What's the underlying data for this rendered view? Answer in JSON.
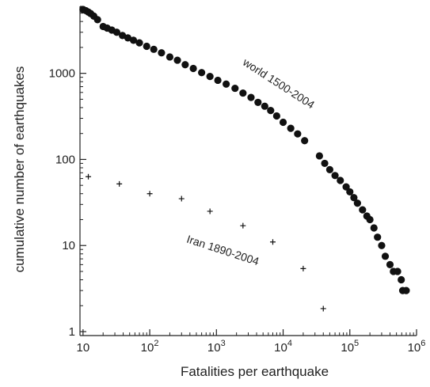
{
  "chart_data": {
    "type": "scatter",
    "xlabel": "Fatalities per earthquake",
    "ylabel": "cumulative number of earthquakes",
    "xscale": "log",
    "yscale": "log",
    "xlim": [
      9,
      1000000
    ],
    "ylim": [
      0.9,
      6000
    ],
    "grid": false,
    "x_ticks": [
      {
        "value": 10,
        "label": "10",
        "exp": ""
      },
      {
        "value": 100,
        "label": "10",
        "exp": "2"
      },
      {
        "value": 1000,
        "label": "10",
        "exp": "3"
      },
      {
        "value": 10000,
        "label": "10",
        "exp": "4"
      },
      {
        "value": 100000,
        "label": "10",
        "exp": "5"
      },
      {
        "value": 1000000,
        "label": "10",
        "exp": "6"
      }
    ],
    "y_ticks": [
      {
        "value": 1,
        "label": "1"
      },
      {
        "value": 10,
        "label": "10"
      },
      {
        "value": 100,
        "label": "100"
      },
      {
        "value": 1000,
        "label": "1000"
      }
    ],
    "series": [
      {
        "name": "world 1500-2004",
        "marker": "filled-circle",
        "color": "#111111",
        "label_at": [
          8000,
          700
        ],
        "label_rotation": 33,
        "points": [
          [
            10,
            5520
          ],
          [
            11,
            5350
          ],
          [
            12,
            5150
          ],
          [
            13,
            4950
          ],
          [
            14.5,
            4620
          ],
          [
            16.5,
            4200
          ],
          [
            20,
            3500
          ],
          [
            23,
            3350
          ],
          [
            27,
            3180
          ],
          [
            32,
            3000
          ],
          [
            39,
            2750
          ],
          [
            47,
            2580
          ],
          [
            57,
            2420
          ],
          [
            70,
            2260
          ],
          [
            90,
            2060
          ],
          [
            115,
            1900
          ],
          [
            150,
            1730
          ],
          [
            200,
            1550
          ],
          [
            260,
            1420
          ],
          [
            340,
            1260
          ],
          [
            450,
            1140
          ],
          [
            600,
            1020
          ],
          [
            800,
            920
          ],
          [
            1050,
            830
          ],
          [
            1400,
            750
          ],
          [
            1900,
            670
          ],
          [
            2500,
            590
          ],
          [
            3300,
            525
          ],
          [
            4200,
            460
          ],
          [
            5300,
            415
          ],
          [
            6500,
            370
          ],
          [
            8000,
            320
          ],
          [
            10000,
            270
          ],
          [
            13000,
            230
          ],
          [
            16500,
            198
          ],
          [
            21000,
            165
          ],
          [
            35000,
            110
          ],
          [
            42000,
            90
          ],
          [
            50000,
            76
          ],
          [
            60000,
            65
          ],
          [
            72000,
            57
          ],
          [
            88000,
            48
          ],
          [
            100000,
            42
          ],
          [
            115000,
            36
          ],
          [
            130000,
            31
          ],
          [
            155000,
            26
          ],
          [
            180000,
            22
          ],
          [
            200000,
            20
          ],
          [
            230000,
            16
          ],
          [
            260000,
            12.5
          ],
          [
            300000,
            10
          ],
          [
            340000,
            7.5
          ],
          [
            400000,
            6
          ],
          [
            450000,
            5
          ],
          [
            520000,
            5
          ],
          [
            590000,
            4
          ],
          [
            620000,
            3
          ],
          [
            700000,
            3
          ]
        ]
      },
      {
        "name": "Iran 1890-2004",
        "marker": "plus",
        "color": "#111111",
        "label_at": [
          1200,
          8
        ],
        "label_rotation": 18,
        "points": [
          [
            12,
            63
          ],
          [
            35,
            52
          ],
          [
            100,
            40
          ],
          [
            300,
            35
          ],
          [
            800,
            25
          ],
          [
            2500,
            17
          ],
          [
            7000,
            11
          ],
          [
            20000,
            5.4
          ],
          [
            40000,
            1.85
          ]
        ]
      }
    ]
  }
}
